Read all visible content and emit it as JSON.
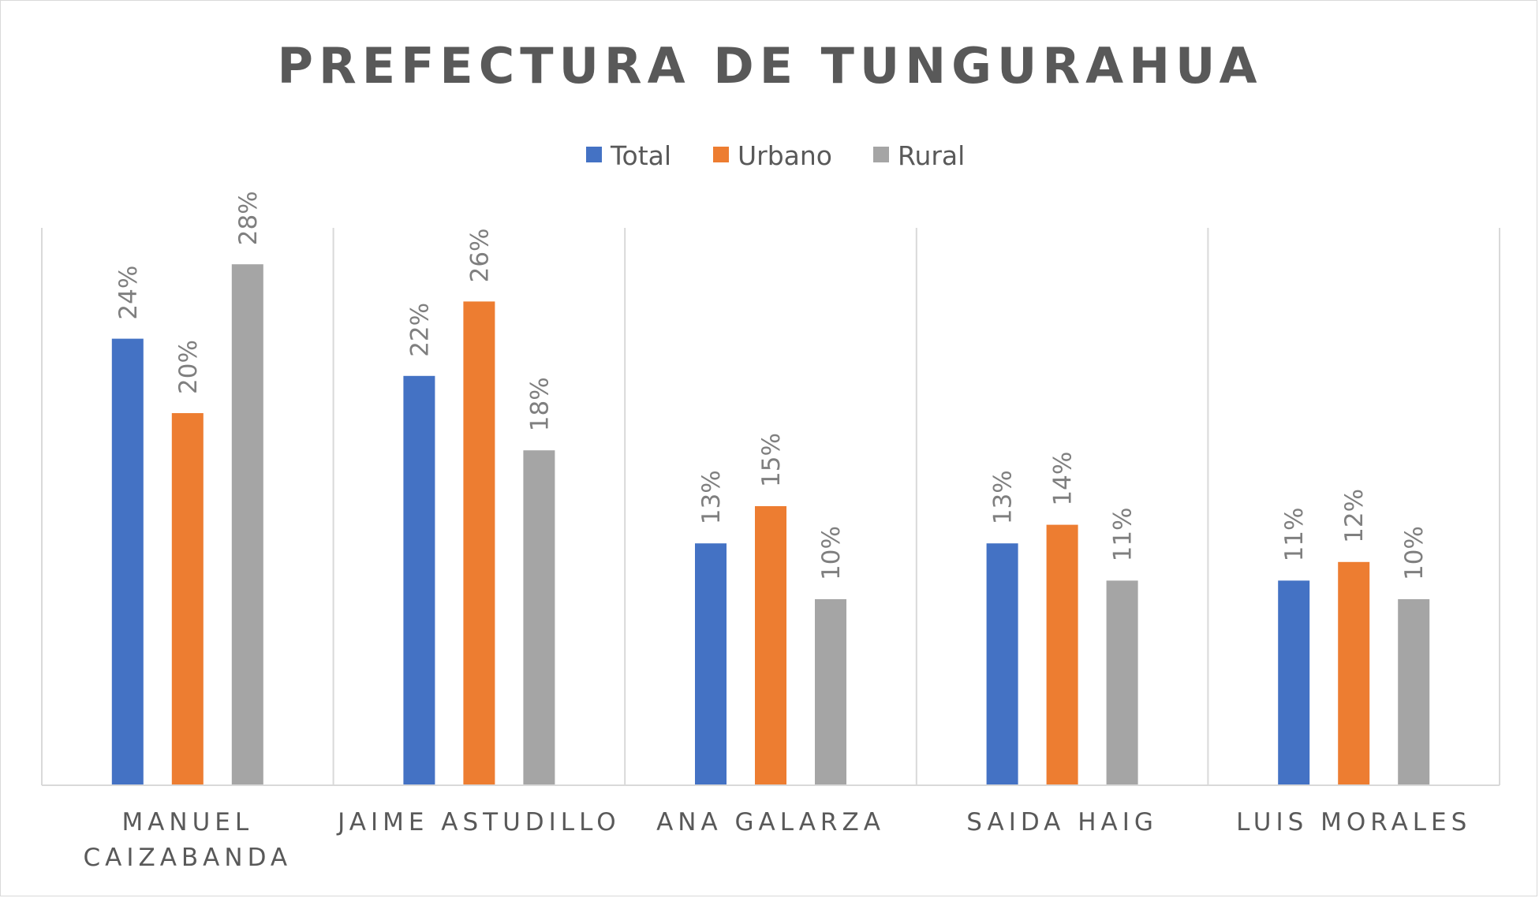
{
  "chart_data": {
    "type": "bar",
    "title": "PREFECTURA DE TUNGURAHUA",
    "xlabel": "",
    "ylabel": "",
    "categories": [
      [
        "MANUEL",
        "CAIZABANDA"
      ],
      [
        "JAIME ASTUDILLO"
      ],
      [
        "ANA GALARZA"
      ],
      [
        "SAIDA HAIG"
      ],
      [
        "LUIS MORALES"
      ]
    ],
    "series": [
      {
        "name": "Total",
        "color": "#4472c4",
        "values": [
          24,
          22,
          13,
          13,
          11
        ],
        "labels": [
          "24%",
          "22%",
          "13%",
          "13%",
          "11%"
        ]
      },
      {
        "name": "Urbano",
        "color": "#ed7d31",
        "values": [
          20,
          26,
          15,
          14,
          12
        ],
        "labels": [
          "20%",
          "26%",
          "15%",
          "14%",
          "12%"
        ]
      },
      {
        "name": "Rural",
        "color": "#a5a5a5",
        "values": [
          28,
          18,
          10,
          11,
          10
        ],
        "labels": [
          "28%",
          "18%",
          "10%",
          "11%",
          "10%"
        ]
      }
    ],
    "ylim": [
      0,
      30
    ],
    "legend_position": "top-center",
    "data_labels": "rotated-vertical",
    "gridlines": "vertical category separators",
    "axis_color": "#d9d9d9"
  }
}
